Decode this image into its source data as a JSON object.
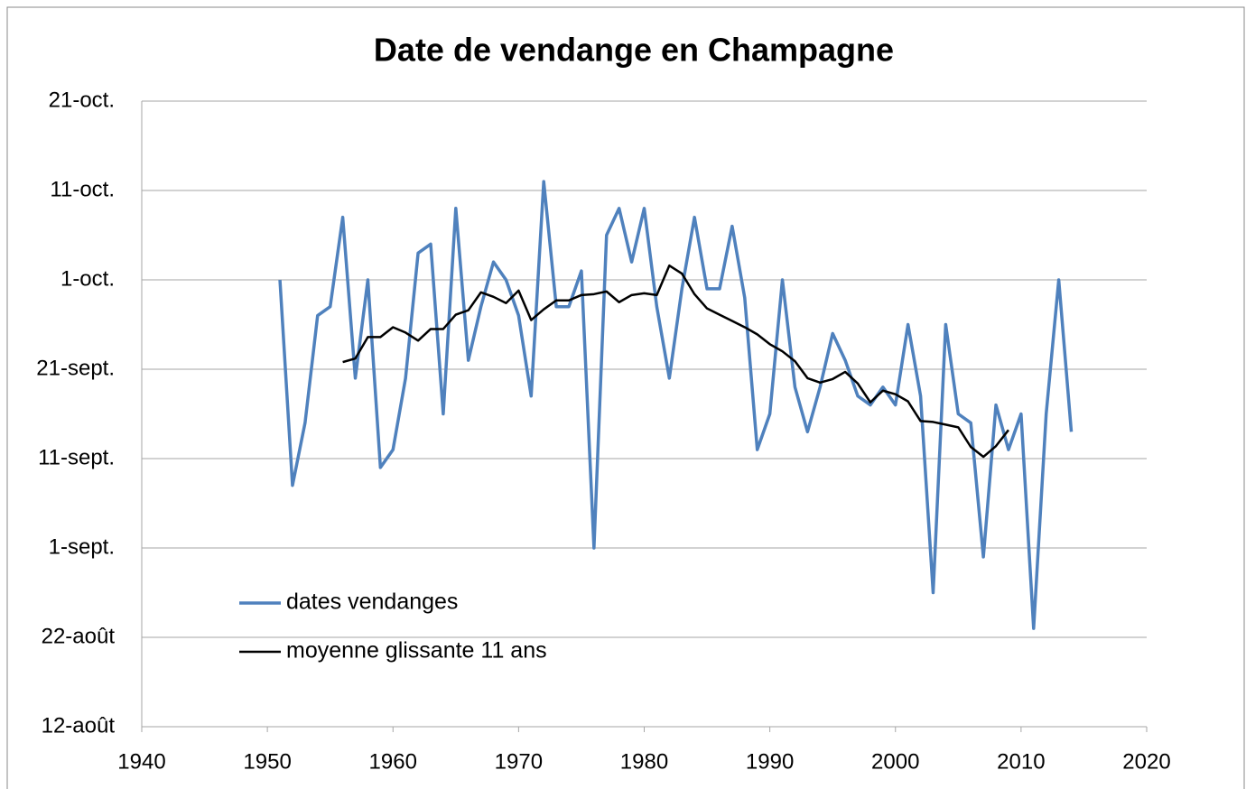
{
  "chart_data": {
    "type": "line",
    "title": "Date de vendange en Champagne",
    "xlim": [
      1940,
      2020
    ],
    "xticks": [
      1940,
      1950,
      1960,
      1970,
      1980,
      1990,
      2000,
      2010,
      2020
    ],
    "ylim": [
      224,
      294
    ],
    "yticks": [
      {
        "value": 224,
        "label": "12-août"
      },
      {
        "value": 234,
        "label": "22-août"
      },
      {
        "value": 244,
        "label": "1-sept."
      },
      {
        "value": 254,
        "label": "11-sept."
      },
      {
        "value": 264,
        "label": "21-sept."
      },
      {
        "value": 274,
        "label": "1-oct."
      },
      {
        "value": 284,
        "label": "11-oct."
      },
      {
        "value": 294,
        "label": "21-oct."
      }
    ],
    "grid": true,
    "legend": "lower left",
    "series": [
      {
        "name": "dates vendanges",
        "color": "#4f81bd",
        "x": [
          1951,
          1952,
          1953,
          1954,
          1955,
          1956,
          1957,
          1958,
          1959,
          1960,
          1961,
          1962,
          1963,
          1964,
          1965,
          1966,
          1967,
          1968,
          1969,
          1970,
          1971,
          1972,
          1973,
          1974,
          1975,
          1976,
          1977,
          1978,
          1979,
          1980,
          1981,
          1982,
          1983,
          1984,
          1985,
          1986,
          1987,
          1988,
          1989,
          1990,
          1991,
          1992,
          1993,
          1994,
          1995,
          1996,
          1997,
          1998,
          1999,
          2000,
          2001,
          2002,
          2003,
          2004,
          2005,
          2006,
          2007,
          2008,
          2009,
          2010,
          2011,
          2012,
          2013,
          2014
        ],
        "values": [
          274,
          251,
          258,
          270,
          271,
          281,
          263,
          274,
          253,
          255,
          263,
          277,
          278,
          259,
          282,
          265,
          271,
          276,
          274,
          270,
          261,
          285,
          271,
          271,
          275,
          244,
          279,
          282,
          276,
          282,
          271,
          263,
          273,
          281,
          273,
          273,
          280,
          272,
          255,
          259,
          274,
          262,
          257,
          262,
          268,
          265,
          261,
          260,
          262,
          260,
          269,
          261,
          239,
          269,
          259,
          258,
          243,
          260,
          255,
          259,
          235,
          259,
          274,
          257
        ]
      },
      {
        "name": "moyenne glissante 11 ans",
        "color": "#000000",
        "x": [
          1956,
          1957,
          1958,
          1959,
          1960,
          1961,
          1962,
          1963,
          1964,
          1965,
          1966,
          1967,
          1968,
          1969,
          1970,
          1971,
          1972,
          1973,
          1974,
          1975,
          1976,
          1977,
          1978,
          1979,
          1980,
          1981,
          1982,
          1983,
          1984,
          1985,
          1986,
          1987,
          1988,
          1989,
          1990,
          1991,
          1992,
          1993,
          1994,
          1995,
          1996,
          1997,
          1998,
          1999,
          2000,
          2001,
          2002,
          2003,
          2004,
          2005,
          2006,
          2007,
          2008,
          2009
        ],
        "values": [
          264.8,
          265.2,
          267.6,
          267.6,
          268.7,
          268.1,
          267.2,
          268.5,
          268.5,
          270.1,
          270.6,
          272.6,
          272.1,
          271.4,
          272.8,
          269.5,
          270.7,
          271.7,
          271.7,
          272.3,
          272.4,
          272.7,
          271.5,
          272.3,
          272.5,
          272.3,
          275.6,
          274.7,
          272.4,
          270.8,
          270.1,
          269.4,
          268.7,
          267.9,
          266.8,
          266.0,
          264.9,
          263.0,
          262.5,
          262.9,
          263.7,
          262.4,
          260.3,
          261.6,
          261.2,
          260.4,
          258.2,
          258.1,
          257.8,
          257.5,
          255.3,
          254.2,
          255.4,
          257.2
        ]
      }
    ]
  }
}
